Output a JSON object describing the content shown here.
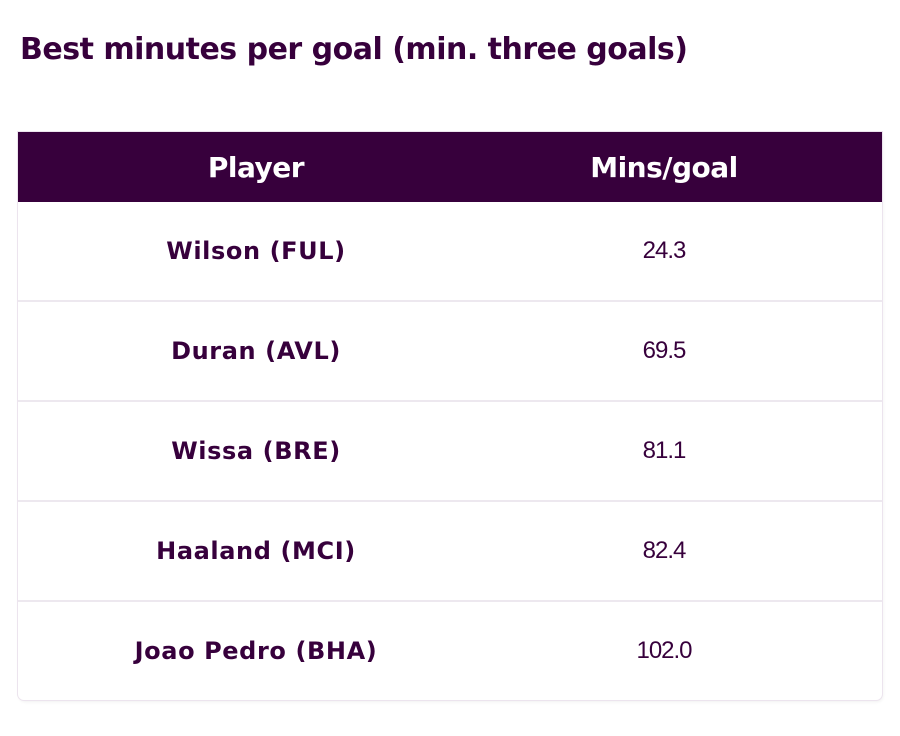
{
  "title": "Best minutes per goal (min. three goals)",
  "table": {
    "headers": {
      "player": "Player",
      "mins": "Mins/goal"
    },
    "rows": [
      {
        "player": "Wilson (FUL)",
        "mins": "24.3"
      },
      {
        "player": "Duran (AVL)",
        "mins": "69.5"
      },
      {
        "player": "Wissa (BRE)",
        "mins": "81.1"
      },
      {
        "player": "Haaland (MCI)",
        "mins": "82.4"
      },
      {
        "player": "Joao Pedro (BHA)",
        "mins": "102.0"
      }
    ]
  },
  "colors": {
    "brand_purple": "#37003c",
    "header_text": "#ffffff",
    "row_divider": "#ede8ef"
  }
}
